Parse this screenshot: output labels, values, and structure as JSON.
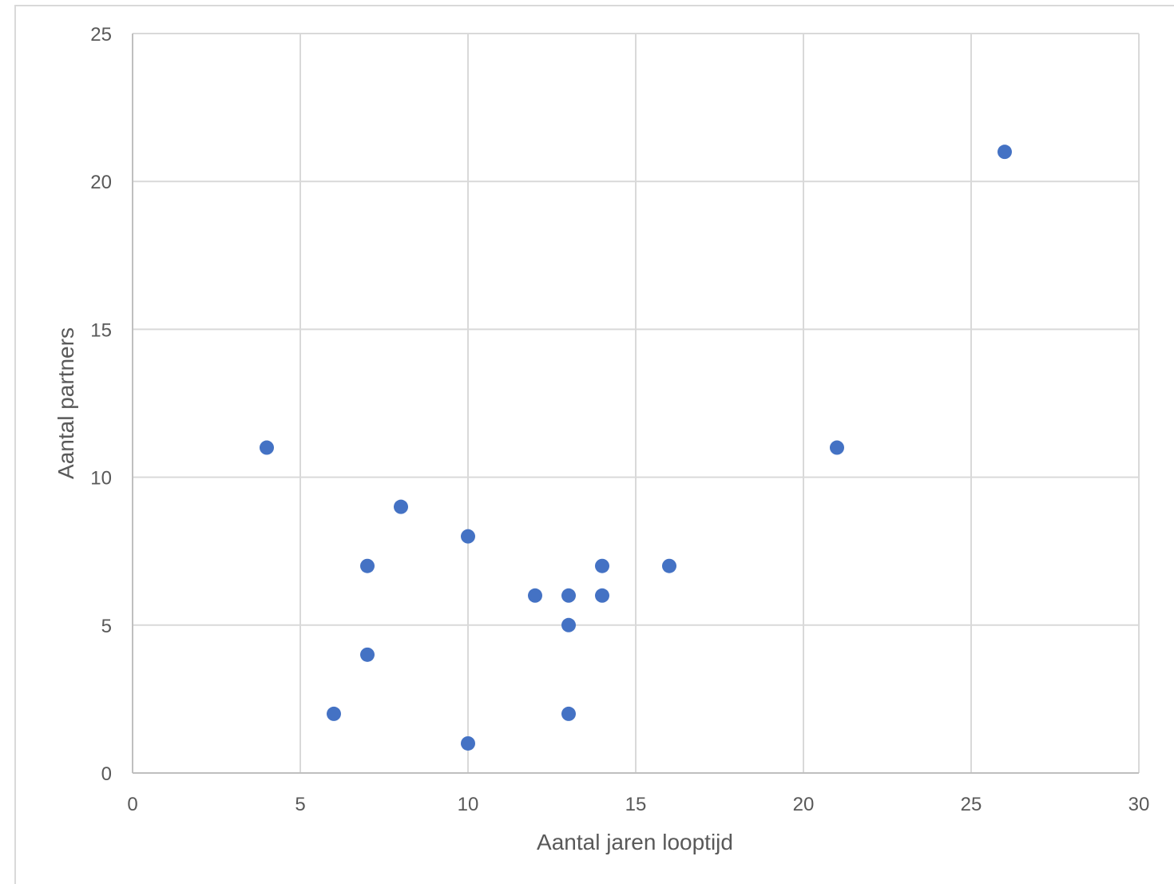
{
  "chart_data": {
    "type": "scatter",
    "title": "",
    "xlabel": "Aantal jaren looptijd",
    "ylabel": "Aantal partners",
    "xlim": [
      0,
      30
    ],
    "ylim": [
      0,
      25
    ],
    "x_ticks": [
      0,
      5,
      10,
      15,
      20,
      25,
      30
    ],
    "y_ticks": [
      0,
      5,
      10,
      15,
      20,
      25
    ],
    "grid": true,
    "legend": "none",
    "marker_color": "#4472c4",
    "gridline_color": "#d9d9d9",
    "points": [
      {
        "x": 4,
        "y": 11
      },
      {
        "x": 6,
        "y": 2
      },
      {
        "x": 7,
        "y": 7
      },
      {
        "x": 7,
        "y": 4
      },
      {
        "x": 8,
        "y": 9
      },
      {
        "x": 10,
        "y": 8
      },
      {
        "x": 10,
        "y": 1
      },
      {
        "x": 12,
        "y": 6
      },
      {
        "x": 13,
        "y": 6
      },
      {
        "x": 13,
        "y": 5
      },
      {
        "x": 13,
        "y": 2
      },
      {
        "x": 14,
        "y": 7
      },
      {
        "x": 14,
        "y": 6
      },
      {
        "x": 16,
        "y": 7
      },
      {
        "x": 21,
        "y": 11
      },
      {
        "x": 26,
        "y": 21
      }
    ]
  }
}
